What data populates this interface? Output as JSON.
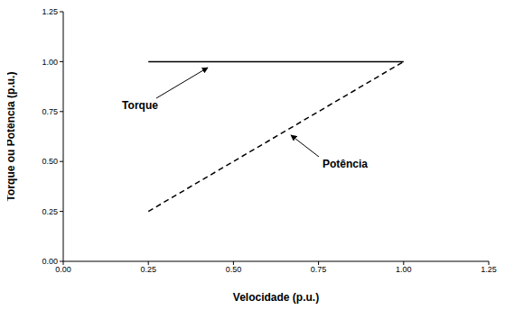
{
  "chart_data": {
    "type": "line",
    "x_label": "Velocidade (p.u.)",
    "y_label": "Torque ou Potência (p.u.)",
    "x": [
      0.25,
      1.0
    ],
    "series": [
      {
        "name": "Torque",
        "color": "#000000",
        "line_style": "solid",
        "values": [
          1.0,
          1.0
        ]
      },
      {
        "name": "Potência",
        "color": "#000000",
        "line_style": "dashed",
        "values": [
          0.25,
          1.0
        ]
      }
    ],
    "xlim": [
      0,
      1.25
    ],
    "xticks": [
      {
        "value": 0,
        "label": "0.00"
      },
      {
        "value": 0.25,
        "label": "0.25"
      },
      {
        "value": 0.5,
        "label": "0.50"
      },
      {
        "value": 0.75,
        "label": "0.75"
      },
      {
        "value": 1.0,
        "label": "1.00"
      },
      {
        "value": 1.25,
        "label": "1.25"
      }
    ],
    "ylim": [
      0,
      1.25
    ],
    "yticks": [
      {
        "value": 0,
        "label": "0.00"
      },
      {
        "value": 0.25,
        "label": "0.25"
      },
      {
        "value": 0.5,
        "label": "0.50"
      },
      {
        "value": 0.75,
        "label": "0.75"
      },
      {
        "value": 1.0,
        "label": "1.00"
      },
      {
        "value": 1.25,
        "label": "1.25"
      }
    ],
    "grid": false
  }
}
